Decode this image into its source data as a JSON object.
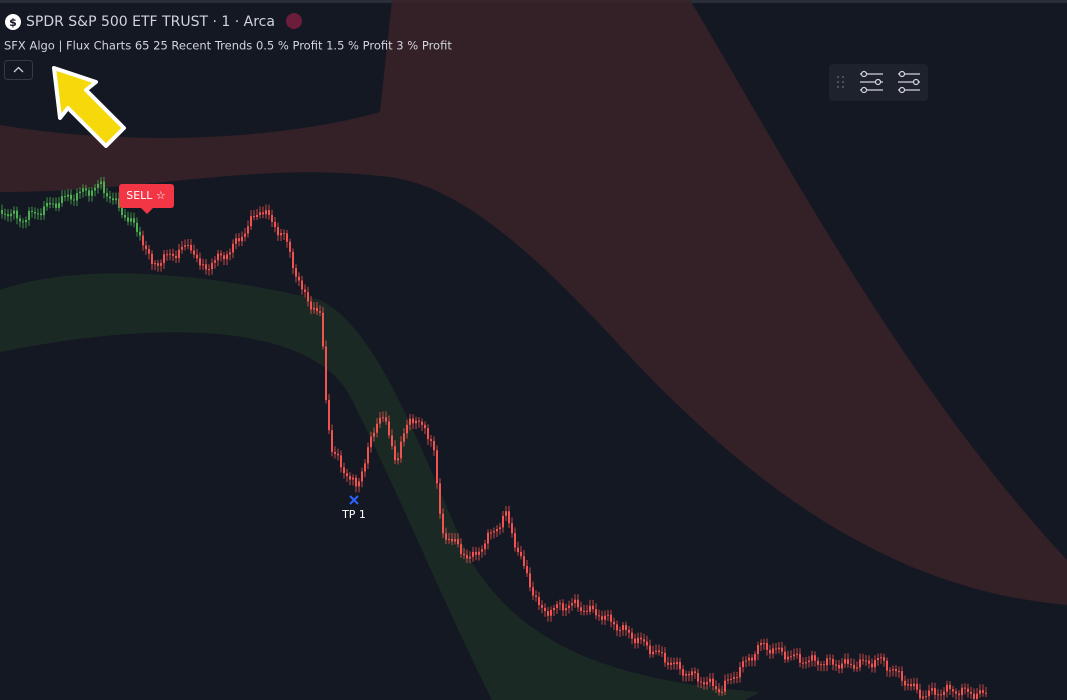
{
  "header": {
    "icon": "$",
    "symbol": "SPDR S&P 500 ETF TRUST · 1 · Arca",
    "indicator": "SFX Algo | Flux Charts 65 25 Recent Trends 0.5 % Profit 1.5 % Profit 3 % Profit"
  },
  "signals": {
    "sell": "SELL ☆",
    "take_profit": "TP 1"
  }
}
